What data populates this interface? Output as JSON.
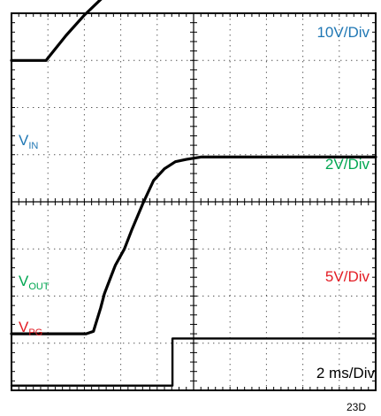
{
  "chart_data": {
    "type": "line",
    "title": "",
    "x_divisions": 10,
    "y_divisions": 8,
    "timebase_label": "2 ms/Div",
    "figure_id": "23D",
    "grid": true,
    "series": [
      {
        "name_main": "V",
        "name_sub": "IN",
        "scale_label": "10V/Div",
        "color": "#1f77b4",
        "trace_color": "#000000",
        "unit": "V",
        "volts_per_div": 10,
        "ground_div": 3.0,
        "x_div": [
          0,
          0.95,
          1.0,
          1.5,
          2,
          2.5,
          3,
          3.5,
          4,
          4.5,
          5,
          6,
          7,
          8,
          9,
          10
        ],
        "y": [
          0,
          0,
          0.5,
          5.3,
          9.6,
          13.3,
          16.3,
          18.7,
          20.6,
          22.1,
          23.3,
          25.1,
          26.2,
          26.9,
          27.3,
          27.5
        ]
      },
      {
        "name_main": "V",
        "name_sub": "OUT",
        "scale_label": "2V/Div",
        "color": "#00a651",
        "trace_color": "#000000",
        "unit": "V",
        "volts_per_div": 2,
        "ground_div": -2.8,
        "x_div": [
          0,
          2.05,
          2.25,
          2.45,
          2.55,
          2.75,
          2.85,
          3.1,
          3.3,
          3.6,
          3.9,
          4.2,
          4.5,
          4.8,
          5.2,
          6,
          7,
          8,
          10
        ],
        "y": [
          0,
          0,
          0.1,
          1.1,
          1.7,
          2.5,
          2.9,
          3.6,
          4.4,
          5.5,
          6.5,
          7.0,
          7.3,
          7.4,
          7.5,
          7.5,
          7.5,
          7.5,
          7.5
        ]
      },
      {
        "name_main": "V",
        "name_sub": "PG",
        "scale_label": "5V/Div",
        "color": "#e31b23",
        "trace_color": "#000000",
        "unit": "V",
        "volts_per_div": 5,
        "ground_div": -3.9,
        "x_div": [
          0,
          4.42,
          4.42,
          10
        ],
        "y": [
          0,
          0,
          5.0,
          5.0
        ]
      }
    ]
  }
}
